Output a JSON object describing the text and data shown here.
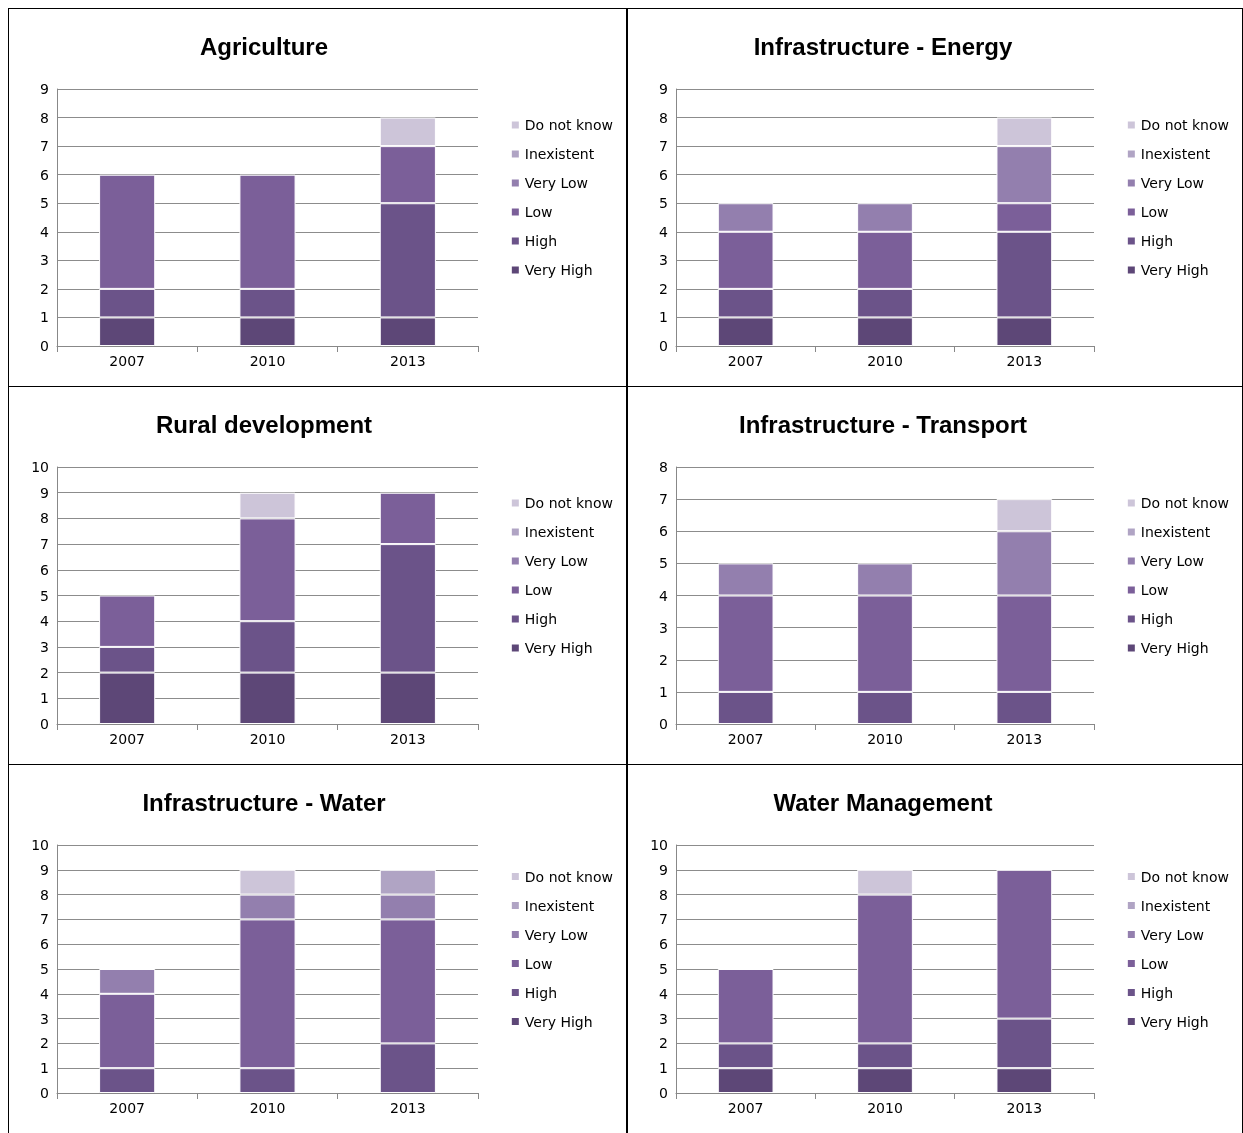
{
  "chart_data": [
    {
      "type": "bar",
      "title": "Agriculture",
      "categories": [
        "2007",
        "2010",
        "2013"
      ],
      "stacked": true,
      "ylim": [
        0,
        9
      ],
      "yticks": [
        0,
        1,
        2,
        3,
        4,
        5,
        6,
        7,
        8,
        9
      ],
      "grid": "y",
      "legend": "right",
      "series": [
        {
          "name": "Very High",
          "color": "#5d4777",
          "values": [
            1,
            1,
            1
          ]
        },
        {
          "name": "High",
          "color": "#6b5389",
          "values": [
            1,
            1,
            4
          ]
        },
        {
          "name": "Low",
          "color": "#7b5f99",
          "values": [
            4,
            4,
            2
          ]
        },
        {
          "name": "Very Low",
          "color": "#937fae",
          "values": [
            null,
            null,
            null
          ]
        },
        {
          "name": "Inexistent",
          "color": "#b0a4c4",
          "values": [
            null,
            null,
            null
          ]
        },
        {
          "name": "Do not know",
          "color": "#cdc5d9",
          "values": [
            null,
            null,
            1
          ]
        }
      ]
    },
    {
      "type": "bar",
      "title": "Infrastructure - Energy",
      "categories": [
        "2007",
        "2010",
        "2013"
      ],
      "stacked": true,
      "ylim": [
        0,
        9
      ],
      "yticks": [
        0,
        1,
        2,
        3,
        4,
        5,
        6,
        7,
        8,
        9
      ],
      "grid": "y",
      "legend": "right",
      "series": [
        {
          "name": "Very High",
          "color": "#5d4777",
          "values": [
            1,
            1,
            1
          ]
        },
        {
          "name": "High",
          "color": "#6b5389",
          "values": [
            1,
            1,
            3
          ]
        },
        {
          "name": "Low",
          "color": "#7b5f99",
          "values": [
            2,
            2,
            1
          ]
        },
        {
          "name": "Very Low",
          "color": "#937fae",
          "values": [
            1,
            1,
            2
          ]
        },
        {
          "name": "Inexistent",
          "color": "#b0a4c4",
          "values": [
            null,
            null,
            null
          ]
        },
        {
          "name": "Do not know",
          "color": "#cdc5d9",
          "values": [
            null,
            null,
            1
          ]
        }
      ]
    },
    {
      "type": "bar",
      "title": "Rural development",
      "categories": [
        "2007",
        "2010",
        "2013"
      ],
      "stacked": true,
      "ylim": [
        0,
        10
      ],
      "yticks": [
        0,
        1,
        2,
        3,
        4,
        5,
        6,
        7,
        8,
        9,
        10
      ],
      "grid": "y",
      "legend": "right",
      "series": [
        {
          "name": "Very High",
          "color": "#5d4777",
          "values": [
            2,
            2,
            2
          ]
        },
        {
          "name": "High",
          "color": "#6b5389",
          "values": [
            1,
            2,
            5
          ]
        },
        {
          "name": "Low",
          "color": "#7b5f99",
          "values": [
            2,
            4,
            2
          ]
        },
        {
          "name": "Very Low",
          "color": "#937fae",
          "values": [
            null,
            null,
            null
          ]
        },
        {
          "name": "Inexistent",
          "color": "#b0a4c4",
          "values": [
            null,
            null,
            null
          ]
        },
        {
          "name": "Do not know",
          "color": "#cdc5d9",
          "values": [
            null,
            1,
            null
          ]
        }
      ]
    },
    {
      "type": "bar",
      "title": "Infrastructure - Transport",
      "categories": [
        "2007",
        "2010",
        "2013"
      ],
      "stacked": true,
      "ylim": [
        0,
        8
      ],
      "yticks": [
        0,
        1,
        2,
        3,
        4,
        5,
        6,
        7,
        8
      ],
      "grid": "y",
      "legend": "right",
      "series": [
        {
          "name": "Very High",
          "color": "#5d4777",
          "values": [
            null,
            null,
            null
          ]
        },
        {
          "name": "High",
          "color": "#6b5389",
          "values": [
            1,
            1,
            1
          ]
        },
        {
          "name": "Low",
          "color": "#7b5f99",
          "values": [
            3,
            3,
            3
          ]
        },
        {
          "name": "Very Low",
          "color": "#937fae",
          "values": [
            1,
            1,
            2
          ]
        },
        {
          "name": "Inexistent",
          "color": "#b0a4c4",
          "values": [
            null,
            null,
            null
          ]
        },
        {
          "name": "Do not know",
          "color": "#cdc5d9",
          "values": [
            null,
            null,
            1
          ]
        }
      ]
    },
    {
      "type": "bar",
      "title": "Infrastructure - Water",
      "categories": [
        "2007",
        "2010",
        "2013"
      ],
      "stacked": true,
      "ylim": [
        0,
        10
      ],
      "yticks": [
        0,
        1,
        2,
        3,
        4,
        5,
        6,
        7,
        8,
        9,
        10
      ],
      "grid": "y",
      "legend": "right",
      "series": [
        {
          "name": "Very High",
          "color": "#5d4777",
          "values": [
            null,
            null,
            null
          ]
        },
        {
          "name": "High",
          "color": "#6b5389",
          "values": [
            1,
            1,
            2
          ]
        },
        {
          "name": "Low",
          "color": "#7b5f99",
          "values": [
            3,
            6,
            5
          ]
        },
        {
          "name": "Very Low",
          "color": "#937fae",
          "values": [
            1,
            1,
            1
          ]
        },
        {
          "name": "Inexistent",
          "color": "#b0a4c4",
          "values": [
            null,
            null,
            1
          ]
        },
        {
          "name": "Do not know",
          "color": "#cdc5d9",
          "values": [
            null,
            1,
            null
          ]
        }
      ]
    },
    {
      "type": "bar",
      "title": "Water Management",
      "categories": [
        "2007",
        "2010",
        "2013"
      ],
      "stacked": true,
      "ylim": [
        0,
        10
      ],
      "yticks": [
        0,
        1,
        2,
        3,
        4,
        5,
        6,
        7,
        8,
        9,
        10
      ],
      "grid": "y",
      "legend": "right",
      "series": [
        {
          "name": "Very High",
          "color": "#5d4777",
          "values": [
            1,
            1,
            1
          ]
        },
        {
          "name": "High",
          "color": "#6b5389",
          "values": [
            1,
            1,
            2
          ]
        },
        {
          "name": "Low",
          "color": "#7b5f99",
          "values": [
            3,
            6,
            6
          ]
        },
        {
          "name": "Very Low",
          "color": "#937fae",
          "values": [
            null,
            null,
            null
          ]
        },
        {
          "name": "Inexistent",
          "color": "#b0a4c4",
          "values": [
            null,
            null,
            null
          ]
        },
        {
          "name": "Do not know",
          "color": "#cdc5d9",
          "values": [
            null,
            1,
            null
          ]
        }
      ]
    }
  ]
}
